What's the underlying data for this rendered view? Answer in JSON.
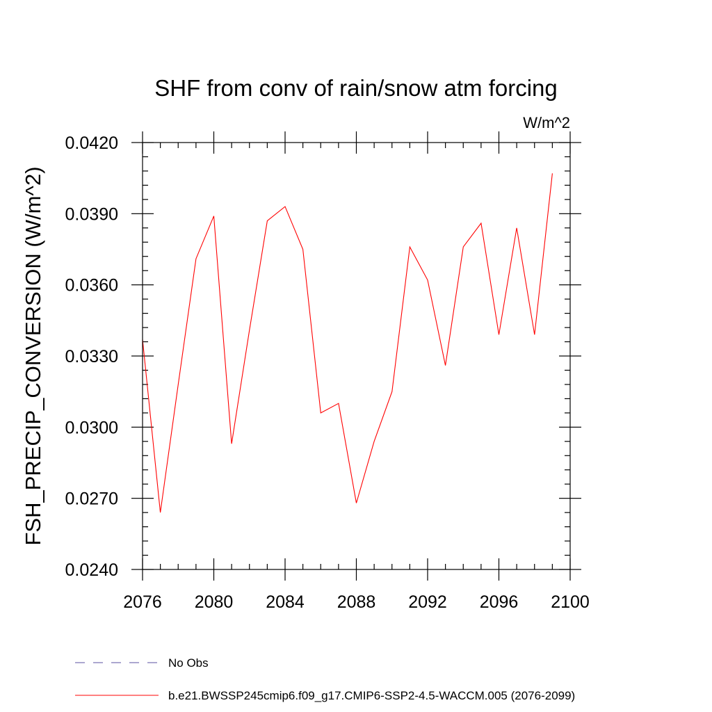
{
  "chart_data": {
    "type": "line",
    "title": "SHF from conv of rain/snow atm forcing",
    "units_label": "W/m^2",
    "ylabel": "FSH_PRECIP_CONVERSION  (W/m^2)",
    "xlabel": "",
    "xlim": [
      2076,
      2100
    ],
    "ylim": [
      0.024,
      0.042
    ],
    "x_ticks": [
      2076,
      2080,
      2084,
      2088,
      2092,
      2096,
      2100
    ],
    "x_tick_labels": [
      "2076",
      "2080",
      "2084",
      "2088",
      "2092",
      "2096",
      "2100"
    ],
    "y_ticks": [
      0.024,
      0.027,
      0.03,
      0.033,
      0.036,
      0.039,
      0.042
    ],
    "y_tick_labels": [
      "0.0240",
      "0.0270",
      "0.0300",
      "0.0330",
      "0.0360",
      "0.0390",
      "0.0420"
    ],
    "grid": false,
    "legend_position": "bottom",
    "series": [
      {
        "name": "No Obs",
        "color": "#5a4fa0",
        "dash": "dashed",
        "x": [],
        "values": []
      },
      {
        "name": "b.e21.BWSSP245cmip6.f09_g17.CMIP6-SSP2-4.5-WACCM.005 (2076-2099)",
        "color": "#ff0000",
        "dash": "solid",
        "x": [
          2076,
          2077,
          2078,
          2079,
          2080,
          2081,
          2082,
          2083,
          2084,
          2085,
          2086,
          2087,
          2088,
          2089,
          2090,
          2091,
          2092,
          2093,
          2094,
          2095,
          2096,
          2097,
          2098,
          2099
        ],
        "values": [
          0.0337,
          0.0264,
          0.0318,
          0.0371,
          0.0389,
          0.0293,
          0.0341,
          0.0387,
          0.0393,
          0.0375,
          0.0306,
          0.031,
          0.0268,
          0.0294,
          0.0315,
          0.0376,
          0.0362,
          0.0326,
          0.0376,
          0.0386,
          0.0339,
          0.0384,
          0.0339,
          0.0407
        ]
      }
    ]
  }
}
